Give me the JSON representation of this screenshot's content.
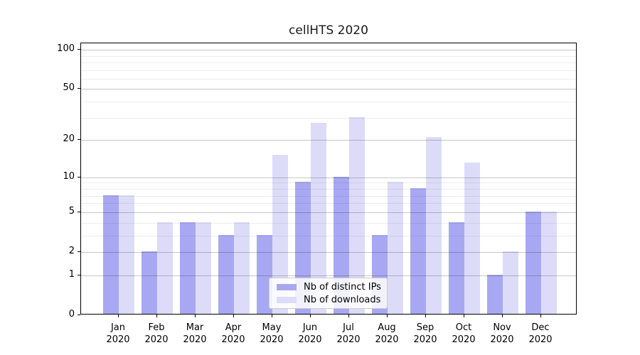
{
  "figure": {
    "background": "#ffffff"
  },
  "chart_data": {
    "type": "bar",
    "title": "cellHTS 2020",
    "categories": [
      "Jan 2020",
      "Feb 2020",
      "Mar 2020",
      "Apr 2020",
      "May 2020",
      "Jun 2020",
      "Jul 2020",
      "Aug 2020",
      "Sep 2020",
      "Oct 2020",
      "Nov 2020",
      "Dec 2020"
    ],
    "series": [
      {
        "name": "Nb of distinct IPs",
        "color": "#a8a8f2",
        "values": [
          7,
          2,
          4,
          3,
          3,
          9,
          10,
          3,
          8,
          4,
          1,
          5
        ]
      },
      {
        "name": "Nb of downloads",
        "color": "#dcdcf9",
        "values": [
          7,
          4,
          4,
          4,
          15,
          27,
          30,
          9,
          21,
          13,
          2,
          5
        ]
      }
    ],
    "xlabel": "",
    "ylabel": "",
    "yscale": "log1p",
    "ylim": [
      0,
      112
    ],
    "yticks_major": [
      0,
      1,
      2,
      5,
      10,
      20,
      50,
      100
    ],
    "yticks_minor": [
      3,
      4,
      6,
      7,
      8,
      9,
      30,
      40,
      60,
      70,
      80,
      90
    ],
    "grid": true,
    "legend_position": "inside-bottom-center"
  },
  "colors": {
    "ips_bar": "#a8a8f2",
    "downloads_bar": "#dcdcf9",
    "axis": "#000000",
    "grid_major": "#c8c8c8",
    "grid_minor": "#ededed",
    "legend_border": "#cccccc",
    "background": "#ffffff"
  }
}
